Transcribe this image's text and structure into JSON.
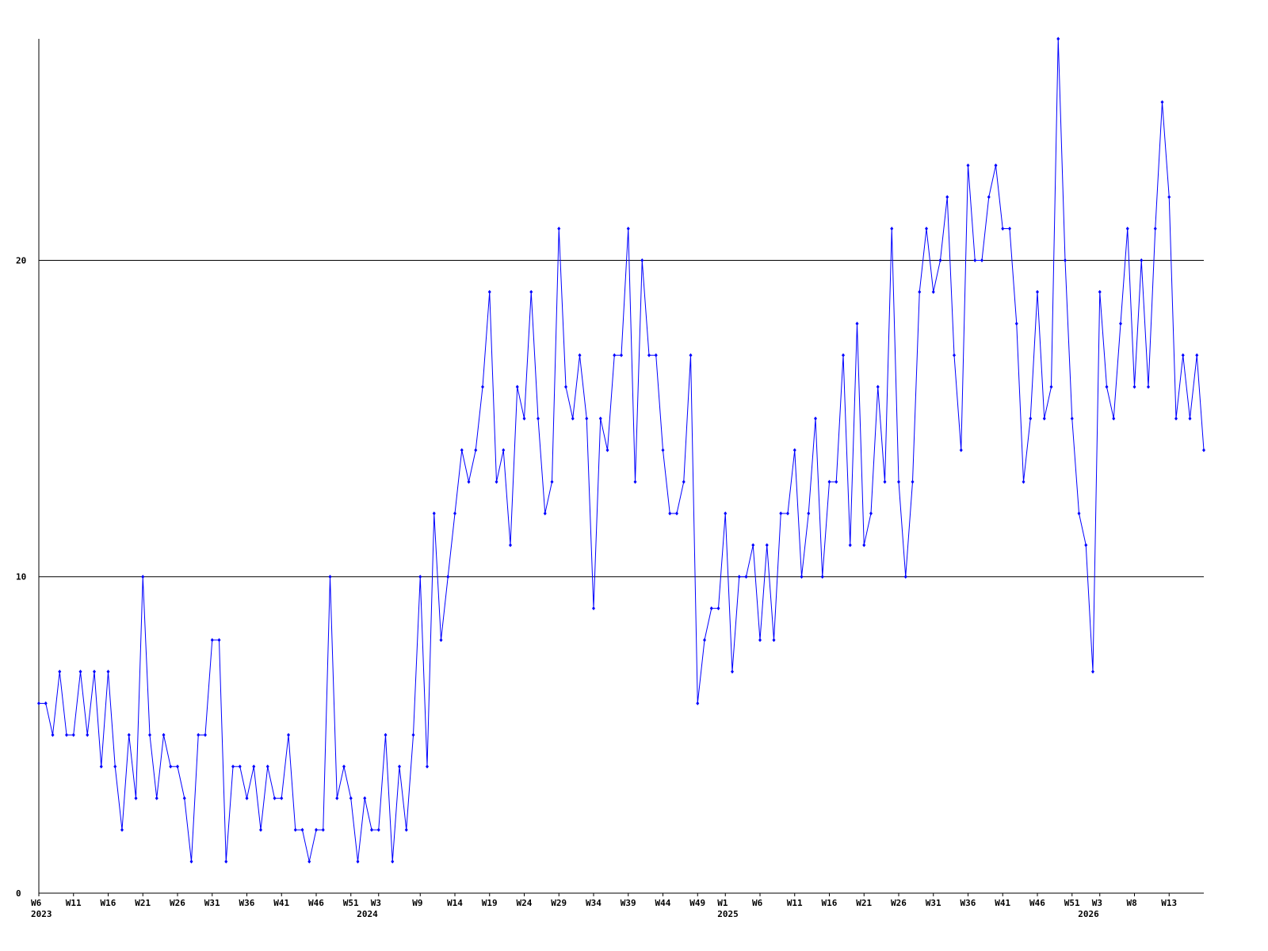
{
  "chart_data": {
    "type": "line",
    "categories": [
      "W6",
      null,
      null,
      null,
      null,
      "W11",
      null,
      null,
      null,
      null,
      "W16",
      null,
      null,
      null,
      null,
      "W21",
      null,
      null,
      null,
      null,
      "W26",
      null,
      null,
      null,
      null,
      "W31",
      null,
      null,
      null,
      null,
      "W36",
      null,
      null,
      null,
      null,
      "W41",
      null,
      null,
      null,
      null,
      "W46",
      null,
      null,
      null,
      null,
      "W51",
      null,
      null,
      null,
      "W3",
      null,
      null,
      null,
      null,
      null,
      "W9",
      null,
      null,
      null,
      null,
      "W14",
      null,
      null,
      null,
      null,
      "W19",
      null,
      null,
      null,
      null,
      "W24",
      null,
      null,
      null,
      null,
      "W29",
      null,
      null,
      null,
      null,
      "W34",
      null,
      null,
      null,
      null,
      "W39",
      null,
      null,
      null,
      null,
      "W44",
      null,
      null,
      null,
      null,
      "W49",
      null,
      null,
      null,
      "W1",
      null,
      null,
      null,
      null,
      "W6",
      null,
      null,
      null,
      null,
      "W11",
      null,
      null,
      null,
      null,
      "W16",
      null,
      null,
      null,
      null,
      "W21",
      null,
      null,
      null,
      null,
      "W26",
      null,
      null,
      null,
      null,
      "W31",
      null,
      null,
      null,
      null,
      "W36",
      null,
      null,
      null,
      null,
      "W41",
      null,
      null,
      null,
      null,
      "W46",
      null,
      null,
      null,
      null,
      "W51",
      null,
      null,
      null,
      "W3",
      null,
      null,
      null,
      null,
      "W8",
      null,
      null,
      null,
      null,
      "W13",
      null,
      null,
      null,
      null,
      null
    ],
    "years": [
      "2023",
      null,
      null,
      null,
      null,
      null,
      null,
      null,
      null,
      null,
      null,
      null,
      null,
      null,
      null,
      null,
      null,
      null,
      null,
      null,
      null,
      null,
      null,
      null,
      null,
      null,
      null,
      null,
      null,
      null,
      null,
      null,
      null,
      null,
      null,
      null,
      null,
      null,
      null,
      null,
      null,
      null,
      null,
      null,
      null,
      null,
      null,
      "2024",
      null,
      null,
      null,
      null,
      null,
      null,
      null,
      null,
      null,
      null,
      null,
      null,
      null,
      null,
      null,
      null,
      null,
      null,
      null,
      null,
      null,
      null,
      null,
      null,
      null,
      null,
      null,
      null,
      null,
      null,
      null,
      null,
      null,
      null,
      null,
      null,
      null,
      null,
      null,
      null,
      null,
      null,
      null,
      null,
      null,
      null,
      null,
      null,
      null,
      null,
      null,
      "2025",
      null,
      null,
      null,
      null,
      null,
      null,
      null,
      null,
      null,
      null,
      null,
      null,
      null,
      null,
      null,
      null,
      null,
      null,
      null,
      null,
      null,
      null,
      null,
      null,
      null,
      null,
      null,
      null,
      null,
      null,
      null,
      null,
      null,
      null,
      null,
      null,
      null,
      null,
      null,
      null,
      null,
      null,
      null,
      null,
      null,
      null,
      null,
      null,
      null,
      null,
      null,
      "2026",
      null,
      null,
      null,
      null,
      null,
      null,
      null,
      null,
      null,
      null,
      null,
      null,
      null,
      null,
      null,
      null,
      null
    ],
    "series": [
      {
        "color": "#0000ff",
        "values": [
          6,
          6,
          5,
          7,
          5,
          5,
          7,
          5,
          7,
          4,
          7,
          4,
          2,
          5,
          3,
          10,
          5,
          3,
          5,
          4,
          4,
          3,
          1,
          5,
          5,
          8,
          8,
          1,
          4,
          4,
          3,
          4,
          2,
          4,
          3,
          3,
          5,
          2,
          2,
          1,
          2,
          2,
          10,
          3,
          4,
          3,
          1,
          3,
          2,
          2,
          5,
          1,
          4,
          2,
          5,
          10,
          4,
          12,
          8,
          10,
          12,
          14,
          13,
          14,
          16,
          19,
          13,
          14,
          11,
          16,
          15,
          19,
          15,
          12,
          13,
          21,
          16,
          15,
          17,
          15,
          9,
          15,
          14,
          17,
          17,
          21,
          13,
          20,
          17,
          17,
          14,
          12,
          12,
          13,
          17,
          6,
          8,
          9,
          9,
          12,
          7,
          10,
          10,
          11,
          8,
          11,
          8,
          12,
          12,
          14,
          10,
          12,
          15,
          10,
          13,
          13,
          17,
          11,
          18,
          11,
          12,
          16,
          13,
          21,
          13,
          10,
          13,
          19,
          21,
          19,
          20,
          22,
          17,
          14,
          23,
          20,
          20,
          22,
          23,
          21,
          21,
          18,
          13,
          15,
          19,
          15,
          16,
          27,
          20,
          15,
          12,
          11,
          7,
          19,
          16,
          15,
          18,
          21,
          16,
          20,
          16,
          21,
          25,
          22,
          15,
          17,
          15,
          17,
          14
        ]
      }
    ],
    "ylim": [
      0,
      27
    ],
    "yticks": [
      0,
      10,
      20
    ],
    "grid": true
  }
}
